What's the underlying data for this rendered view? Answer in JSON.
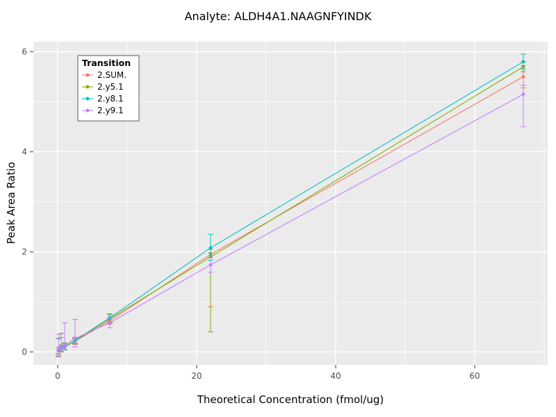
{
  "page": {
    "title": "Analyte: ALDH4A1.NAAGNFYINDK"
  },
  "chart_data": {
    "type": "line",
    "title": "Analyte: ALDH4A1.NAAGNFYINDK",
    "xlabel": "Theoretical Concentration (fmol/ug)",
    "ylabel": "Peak Area Ratio",
    "xlim": [
      -3.5,
      70.5
    ],
    "ylim": [
      -0.26,
      6.2
    ],
    "x_ticks": [
      0,
      20,
      40,
      60
    ],
    "x_minor_ticks": [
      10,
      30,
      50,
      70
    ],
    "y_ticks": [
      0,
      2,
      4,
      6
    ],
    "y_minor_ticks": [
      1,
      3,
      5
    ],
    "grid": true,
    "panel_color": "#EBEBEB",
    "grid_color": "#FFFFFF",
    "tick_label_color": "#4D4D4D",
    "legend_title": "Transition",
    "legend_position": "top-left-inset",
    "series": [
      {
        "name": "2.SUM.",
        "color": "#F8766D",
        "x": [
          0.1,
          0.5,
          1,
          2.5,
          7.5,
          22,
          67
        ],
        "y": [
          0.02,
          0.05,
          0.1,
          0.21,
          0.62,
          1.95,
          5.5
        ],
        "err_lo": [
          0.12,
          0.05,
          0.06,
          0.06,
          0.07,
          1.05,
          0.22
        ],
        "err_hi": [
          0.25,
          0.05,
          0.06,
          0.06,
          0.07,
          0.1,
          0.22
        ]
      },
      {
        "name": "2.y5.1",
        "color": "#7CAE00",
        "x": [
          0.1,
          0.5,
          1,
          2.5,
          7.5,
          22,
          67
        ],
        "y": [
          0.03,
          0.12,
          0.11,
          0.22,
          0.66,
          1.9,
          5.7
        ],
        "err_lo": [
          0.06,
          0.12,
          0.07,
          0.06,
          0.08,
          1.5,
          0.1
        ],
        "err_hi": [
          0.06,
          0.25,
          0.07,
          0.06,
          0.08,
          0.08,
          0.1
        ]
      },
      {
        "name": "2.y8.1",
        "color": "#00BFC4",
        "x": [
          0.1,
          0.5,
          1,
          2.5,
          7.5,
          22,
          67
        ],
        "y": [
          0.04,
          0.07,
          0.1,
          0.23,
          0.68,
          2.08,
          5.8
        ],
        "err_lo": [
          0.12,
          0.06,
          0.06,
          0.06,
          0.08,
          0.25,
          0.15
        ],
        "err_hi": [
          0.22,
          0.06,
          0.06,
          0.06,
          0.08,
          0.27,
          0.15
        ]
      },
      {
        "name": "2.y9.1",
        "color": "#C77CFF",
        "x": [
          0.1,
          0.5,
          1,
          2.5,
          7.5,
          22,
          67
        ],
        "y": [
          0.05,
          0.09,
          0.13,
          0.27,
          0.58,
          1.74,
          5.15
        ],
        "err_lo": [
          0.1,
          0.08,
          0.08,
          0.17,
          0.1,
          0.15,
          0.65
        ],
        "err_hi": [
          0.3,
          0.2,
          0.45,
          0.38,
          0.1,
          0.15,
          0.18
        ]
      }
    ]
  }
}
